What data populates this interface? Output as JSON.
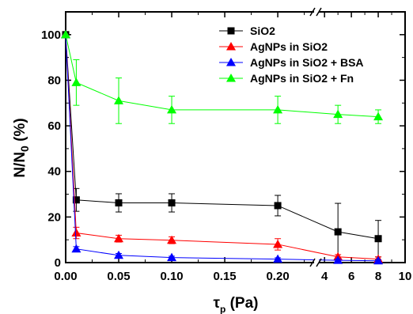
{
  "chart_data": {
    "type": "line",
    "ylabel": "N/N",
    "ylabel_sub": "0",
    "ylabel_unit": " (%)",
    "xlabel": "τ",
    "xlabel_sub": "p",
    "xlabel_unit": " (Pa)",
    "ylim": [
      0,
      110
    ],
    "xlim_segment1": [
      0,
      0.235
    ],
    "xlim_segment2": [
      3.4,
      10
    ],
    "axis_break_marker": "//",
    "y_ticks": [
      "0",
      "20",
      "40",
      "60",
      "80",
      "100"
    ],
    "x_ticks_segment1": [
      "0.00",
      "0.05",
      "0.10",
      "0.15",
      "0.20"
    ],
    "x_ticks_segment2": [
      "4",
      "6",
      "8",
      "10"
    ],
    "legend_position": "top-right",
    "series": [
      {
        "name": "SiO2",
        "color": "#000000",
        "marker": "square",
        "x": [
          0.0,
          0.01,
          0.05,
          0.1,
          0.2,
          5,
          8
        ],
        "y": [
          100,
          27.5,
          26.2,
          26.2,
          25.0,
          13.5,
          10.5
        ],
        "err": [
          0,
          5,
          4,
          4,
          4.5,
          12.5,
          8
        ]
      },
      {
        "name": "AgNPs in SiO2",
        "color": "#ff0000",
        "marker": "triangle",
        "x": [
          0.0,
          0.01,
          0.05,
          0.1,
          0.2,
          5,
          8
        ],
        "y": [
          100,
          13.0,
          10.5,
          9.8,
          8.0,
          2.5,
          1.5
        ],
        "err": [
          0,
          2.5,
          1.5,
          1.5,
          2.5,
          1,
          1
        ]
      },
      {
        "name": "AgNPs in SiO2 + BSA",
        "color": "#0000ff",
        "marker": "triangle",
        "x": [
          0.0,
          0.01,
          0.05,
          0.1,
          0.2,
          5,
          8
        ],
        "y": [
          100,
          6.0,
          3.2,
          2.2,
          1.5,
          1.0,
          0.8
        ],
        "err": [
          0,
          1,
          0.8,
          0.6,
          0.6,
          0.5,
          0.5
        ]
      },
      {
        "name": "AgNPs in SiO2 + Fn",
        "color": "#00ff00",
        "marker": "triangle",
        "x": [
          0.0,
          0.01,
          0.05,
          0.1,
          0.2,
          5,
          8
        ],
        "y": [
          100,
          79.0,
          71.0,
          67.0,
          67.0,
          65.0,
          64.0
        ],
        "err": [
          0,
          10,
          10,
          6,
          6,
          4,
          3
        ]
      }
    ]
  }
}
